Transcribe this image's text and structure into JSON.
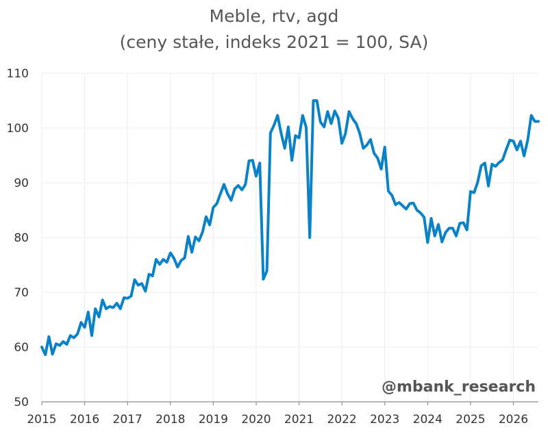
{
  "chart_data": {
    "type": "line",
    "title": "Meble, rtv, agd",
    "subtitle": "(ceny stałe, indeks 2021 = 100, SA)",
    "xlabel": "",
    "ylabel": "",
    "ylim": [
      50,
      110
    ],
    "yticks": [
      50,
      60,
      70,
      80,
      90,
      100,
      110
    ],
    "xlim": [
      "2015-01",
      "2026-08"
    ],
    "xticks": [
      "2015",
      "2016",
      "2017",
      "2018",
      "2019",
      "2020",
      "2021",
      "2022",
      "2023",
      "2024",
      "2025",
      "2026"
    ],
    "grid": true,
    "legend": "none",
    "watermark": "@mbank_research",
    "colors": {
      "series": "#0a82c8"
    },
    "series": [
      {
        "x": [
          "2015-01",
          "2015-02",
          "2015-03",
          "2015-04",
          "2015-05",
          "2015-06",
          "2015-07",
          "2015-08",
          "2015-09",
          "2015-10",
          "2015-11",
          "2015-12",
          "2016-01",
          "2016-02",
          "2016-03",
          "2016-04",
          "2016-05",
          "2016-06",
          "2016-07",
          "2016-08",
          "2016-09",
          "2016-10",
          "2016-11",
          "2016-12",
          "2017-01",
          "2017-02",
          "2017-03",
          "2017-04",
          "2017-05",
          "2017-06",
          "2017-07",
          "2017-08",
          "2017-09",
          "2017-10",
          "2017-11",
          "2017-12",
          "2018-01",
          "2018-02",
          "2018-03",
          "2018-04",
          "2018-05",
          "2018-06",
          "2018-07",
          "2018-08",
          "2018-09",
          "2018-10",
          "2018-11",
          "2018-12",
          "2019-01",
          "2019-02",
          "2019-03",
          "2019-04",
          "2019-05",
          "2019-06",
          "2019-07",
          "2019-08",
          "2019-09",
          "2019-10",
          "2019-11",
          "2019-12",
          "2020-01",
          "2020-02",
          "2020-03",
          "2020-04",
          "2020-05",
          "2020-06",
          "2020-07",
          "2020-08",
          "2020-09",
          "2020-10",
          "2020-11",
          "2020-12",
          "2021-01",
          "2021-02",
          "2021-03",
          "2021-04",
          "2021-05",
          "2021-06",
          "2021-07",
          "2021-08",
          "2021-09",
          "2021-10",
          "2021-11",
          "2021-12",
          "2022-01",
          "2022-02",
          "2022-03",
          "2022-04",
          "2022-05",
          "2022-06",
          "2022-07",
          "2022-08",
          "2022-09",
          "2022-10",
          "2022-11",
          "2022-12",
          "2023-01",
          "2023-02",
          "2023-03",
          "2023-04",
          "2023-05",
          "2023-06",
          "2023-07",
          "2023-08",
          "2023-09",
          "2023-10",
          "2023-11",
          "2023-12",
          "2024-01",
          "2024-02",
          "2024-03",
          "2024-04",
          "2024-05",
          "2024-06",
          "2024-07",
          "2024-08",
          "2024-09",
          "2024-10",
          "2024-11",
          "2024-12",
          "2025-01",
          "2025-02",
          "2025-03",
          "2025-04",
          "2025-05",
          "2025-06",
          "2025-07",
          "2025-08",
          "2025-09",
          "2025-10",
          "2025-11",
          "2025-12",
          "2026-01",
          "2026-02",
          "2026-03",
          "2026-04",
          "2026-05",
          "2026-06",
          "2026-07",
          "2026-08"
        ],
        "values": [
          60.0,
          58.6,
          61.9,
          58.7,
          60.6,
          60.3,
          61.0,
          60.5,
          62.1,
          61.7,
          62.4,
          64.5,
          63.6,
          66.4,
          62.1,
          67.0,
          65.5,
          68.6,
          67.0,
          67.4,
          67.2,
          68.0,
          67.0,
          69.0,
          68.9,
          69.3,
          72.3,
          71.3,
          71.6,
          70.2,
          73.3,
          73.0,
          76.0,
          75.1,
          76.0,
          75.5,
          77.2,
          76.2,
          74.6,
          75.8,
          76.3,
          80.2,
          77.3,
          80.1,
          79.4,
          81.0,
          83.8,
          82.3,
          85.5,
          86.2,
          88.0,
          89.7,
          88.0,
          86.8,
          88.9,
          89.5,
          88.7,
          89.7,
          94.0,
          94.1,
          91.2,
          93.6,
          72.4,
          73.9,
          99.1,
          100.5,
          102.3,
          99.0,
          96.3,
          100.2,
          94.1,
          98.6,
          98.2,
          102.3,
          100.1,
          80.0,
          105.0,
          105.0,
          101.1,
          100.2,
          103.0,
          100.8,
          103.1,
          101.8,
          97.2,
          99.0,
          103.0,
          101.7,
          100.8,
          99.0,
          96.3,
          96.9,
          97.9,
          95.4,
          94.5,
          92.5,
          96.5,
          88.5,
          87.7,
          86.0,
          86.4,
          85.8,
          85.2,
          86.2,
          86.3,
          85.0,
          84.5,
          83.7,
          79.1,
          83.5,
          80.3,
          82.4,
          79.2,
          80.9,
          81.7,
          81.7,
          80.3,
          82.6,
          82.7,
          81.4,
          88.4,
          88.2,
          90.1,
          93.1,
          93.6,
          89.4,
          93.4,
          93.0,
          93.7,
          94.2,
          96.1,
          97.8,
          97.6,
          96.0,
          97.6,
          94.9,
          97.8,
          102.3,
          101.2,
          101.2
        ]
      }
    ]
  }
}
